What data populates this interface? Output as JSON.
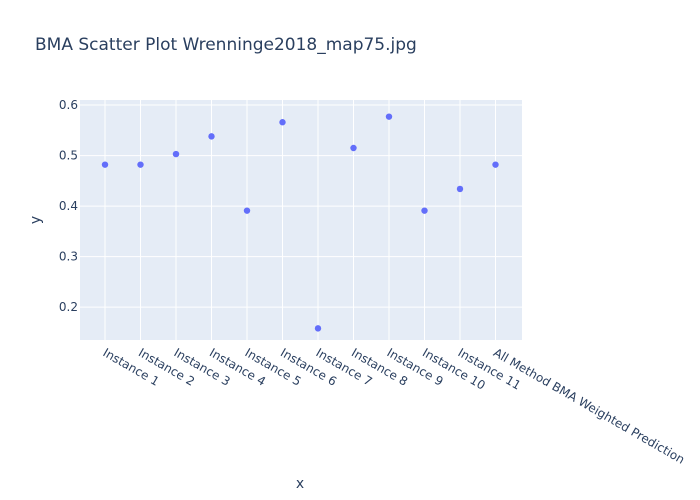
{
  "chart_data": {
    "type": "scatter",
    "title": "BMA Scatter Plot Wrenninge2018_map75.jpg",
    "xlabel": "x",
    "ylabel": "y",
    "categories": [
      "Instance 1",
      "Instance 2",
      "Instance 3",
      "Instance 4",
      "Instance 5",
      "Instance 6",
      "Instance 7",
      "Instance 8",
      "Instance 9",
      "Instance 10",
      "Instance 11",
      "All Method BMA Weighted Prediction"
    ],
    "values": [
      0.482,
      0.482,
      0.503,
      0.538,
      0.391,
      0.566,
      0.158,
      0.515,
      0.577,
      0.391,
      0.434,
      0.482
    ],
    "ylim": [
      0.135,
      0.61
    ],
    "yticks": [
      "0.2",
      "0.3",
      "0.4",
      "0.5",
      "0.6"
    ],
    "grid": true,
    "colors": {
      "marker": "#636efa",
      "plot_bg": "#e5ecf6",
      "grid": "#ffffff",
      "text": "#2a3f5f"
    }
  }
}
